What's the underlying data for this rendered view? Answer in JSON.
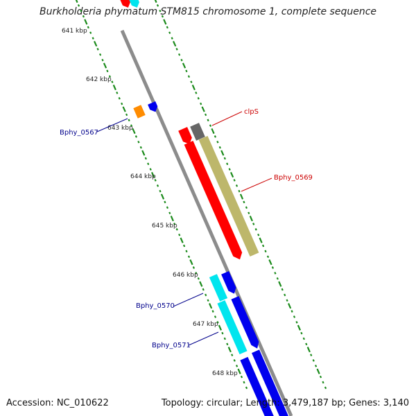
{
  "header": {
    "title": "Burkholderia phymatum STM815 chromosome 1, complete sequence"
  },
  "footer": {
    "accession": "Accession: NC_010622",
    "topology": "Topology: circular; Length: 3,479,187 bp; Genes: 3,140"
  },
  "ruler": {
    "ticks": [
      "641 kbp",
      "642 kbp",
      "643 kbp",
      "644 kbp",
      "645 kbp",
      "646 kbp",
      "647 kbp",
      "648 kbp"
    ]
  },
  "gene_labels": {
    "clpS": "clpS",
    "bphy_0569": "Bphy_0569",
    "bphy_0567": "Bphy_0567",
    "bphy_0570": "Bphy_0570",
    "bphy_0571": "Bphy_0571"
  },
  "colors": {
    "backbone": "#8c8c8c",
    "red_gene": "#ff0000",
    "olive_gene": "#bdb76b",
    "gray_gene": "#666666",
    "orange_gene": "#ff8c00",
    "blue_gene": "#0000ee",
    "cyan_gene": "#00e5ee",
    "tick_green": "#1a8a1a",
    "label_red": "#cc0000",
    "label_blue": "#00008b"
  }
}
